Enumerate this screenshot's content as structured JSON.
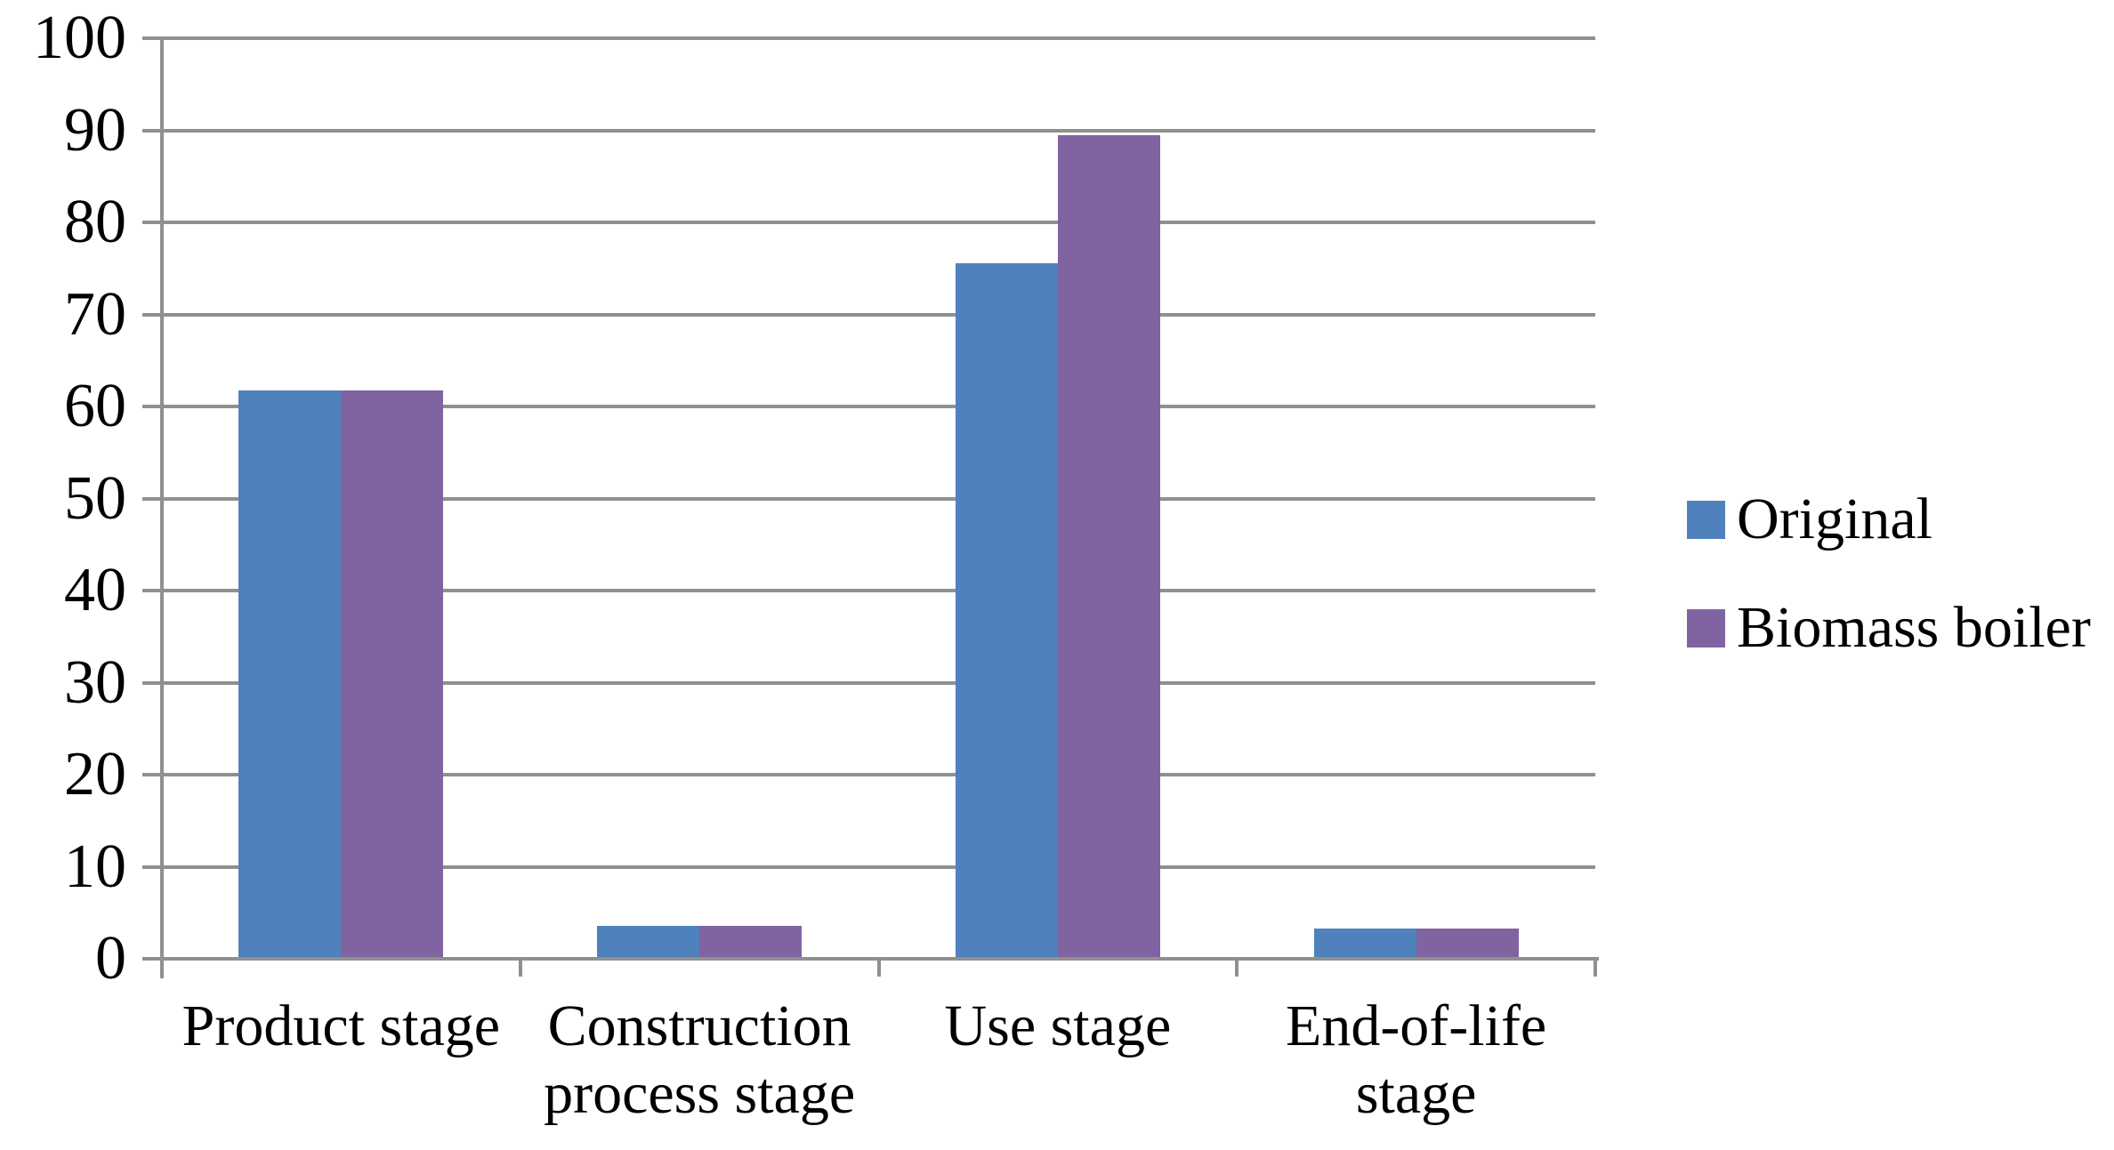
{
  "chart_data": {
    "type": "bar",
    "title": "",
    "xlabel": "",
    "ylabel": "",
    "categories": [
      "Product stage",
      "Construction process stage",
      "Use stage",
      "End-of-life stage"
    ],
    "category_label_lines": [
      [
        "Product stage"
      ],
      [
        "Construction",
        "process stage"
      ],
      [
        "Use stage"
      ],
      [
        "End-of-life",
        "stage"
      ]
    ],
    "series": [
      {
        "name": "Original",
        "color": "#4F81BD",
        "values": [
          61.7,
          3.6,
          75.6,
          3.3
        ]
      },
      {
        "name": "Biomass boiler",
        "color": "#8064A2",
        "values": [
          61.7,
          3.6,
          89.5,
          3.3
        ]
      }
    ],
    "ylim": [
      0,
      100
    ],
    "yticks": [
      0,
      10,
      20,
      30,
      40,
      50,
      60,
      70,
      80,
      90,
      100
    ],
    "grid": true,
    "legend_position": "right"
  },
  "colors": {
    "axis": "#909090",
    "gridline": "#909090",
    "text": "#000000",
    "background": "#FFFFFF",
    "series_blue": "#4F81BD",
    "series_purple": "#8064A2"
  }
}
